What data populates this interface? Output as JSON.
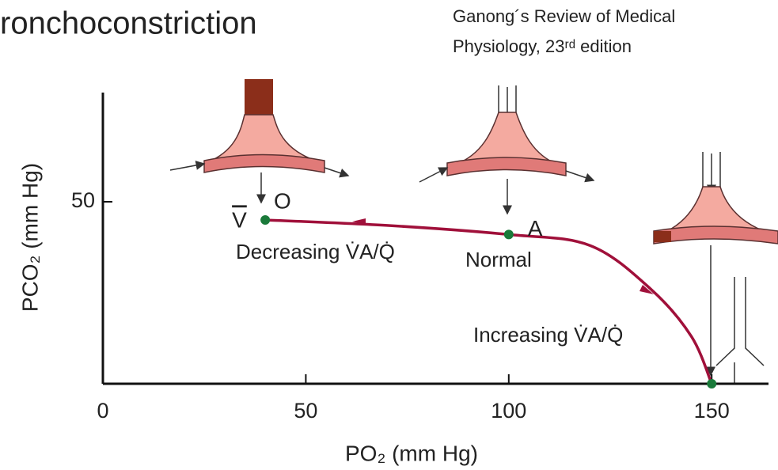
{
  "chart_data": {
    "type": "line",
    "title": "ronchoconstriction",
    "citation": [
      "Ganong´s Review of Medical",
      "Physiology, 23ʳᵈ edition"
    ],
    "xlabel": "PO₂ (mm Hg)",
    "ylabel": "PCO₂ (mm Hg)",
    "x": [
      40,
      70,
      100,
      120,
      135,
      145,
      150
    ],
    "series": [
      {
        "color": "#a0103a",
        "values": [
          45,
          43.5,
          41,
          38,
          26,
          13,
          0
        ]
      }
    ],
    "points": [
      {
        "x": 40,
        "y": 45,
        "label": "V",
        "color": "#1a7a3a"
      },
      {
        "x": 100,
        "y": 41,
        "label": "A",
        "color": "#1a7a3a"
      },
      {
        "x": 150,
        "y": 0,
        "color": "#1a7a3a"
      }
    ],
    "annotations": [
      "O",
      "Decreasing V̇A/Q̇",
      "Normal",
      "Increasing V̇A/Q̇"
    ],
    "xlim": [
      0,
      164
    ],
    "ylim": [
      0,
      80
    ],
    "xticks": [
      0,
      50,
      100,
      150
    ],
    "yticks": [
      50
    ]
  }
}
